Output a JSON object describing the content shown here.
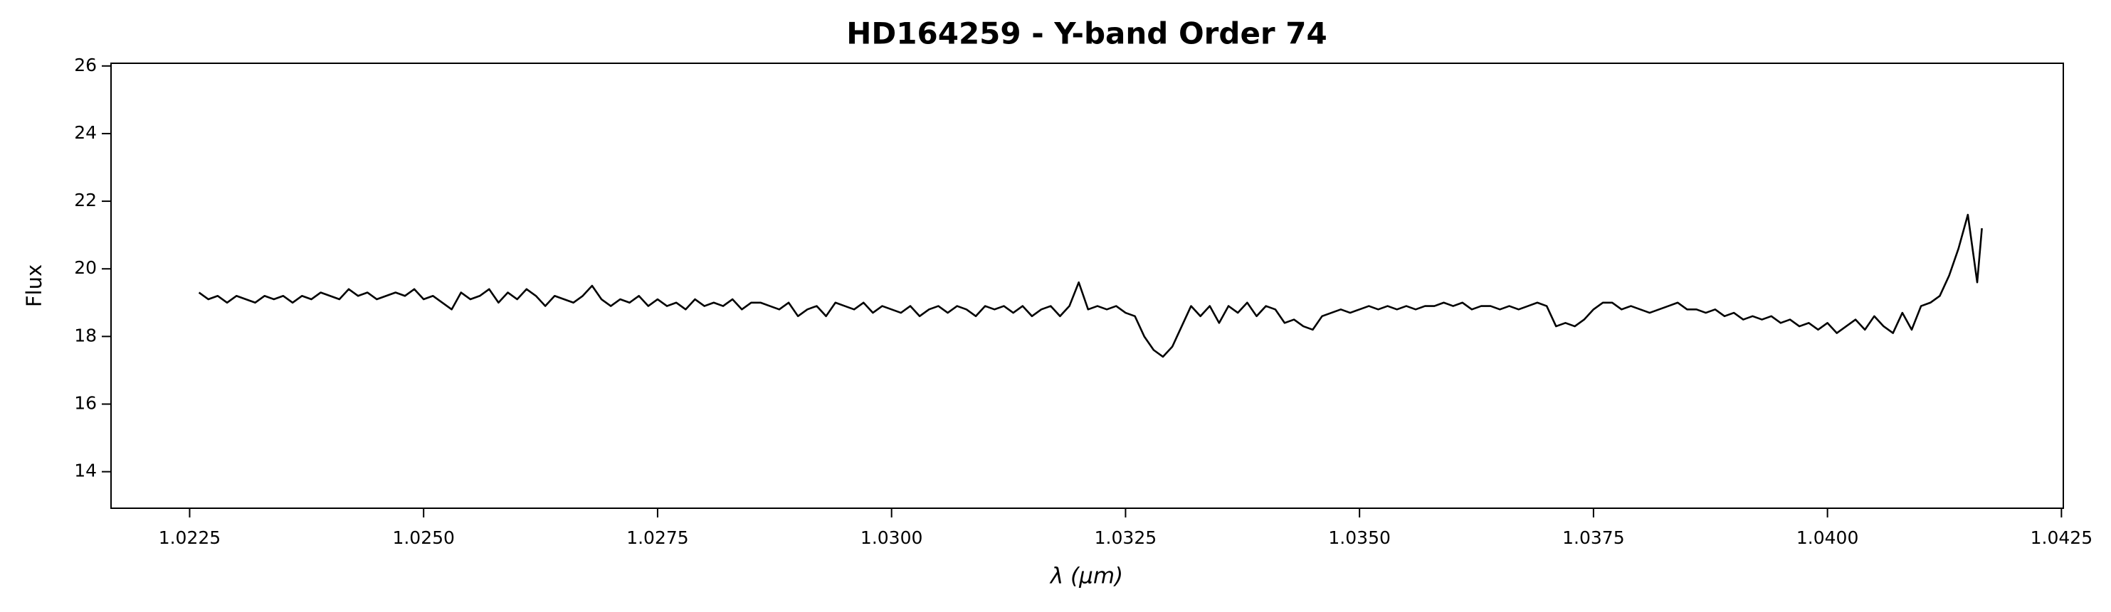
{
  "chart_data": {
    "type": "line",
    "title": "HD164259 - Y-band Order 74",
    "xlabel": "λ (μm)",
    "ylabel": "Flux",
    "color": "#000000",
    "xlim": [
      1.02166,
      1.04252
    ],
    "ylim": [
      12.92,
      26.08
    ],
    "xticks": [
      1.0225,
      {
        "value": 1.025,
        "label": "1.0250"
      },
      1.0275,
      {
        "value": 1.03,
        "label": "1.0300"
      },
      1.0325,
      {
        "value": 1.035,
        "label": "1.0350"
      },
      1.0375,
      {
        "value": 1.04,
        "label": "1.0400"
      },
      1.0425
    ],
    "yticks": [
      14,
      16,
      18,
      20,
      22,
      24,
      26
    ],
    "x": [
      1.0226,
      1.0227,
      1.0228,
      1.0229,
      1.023,
      1.0231,
      1.0232,
      1.0233,
      1.0234,
      1.0235,
      1.0236,
      1.0237,
      1.0238,
      1.0239,
      1.024,
      1.0241,
      1.0242,
      1.0243,
      1.0244,
      1.0245,
      1.0246,
      1.0247,
      1.0248,
      1.0249,
      1.025,
      1.0251,
      1.0252,
      1.0253,
      1.0254,
      1.0255,
      1.0256,
      1.0257,
      1.0258,
      1.0259,
      1.026,
      1.0261,
      1.0262,
      1.0263,
      1.0264,
      1.0265,
      1.0266,
      1.0267,
      1.0268,
      1.0269,
      1.027,
      1.0271,
      1.0272,
      1.0273,
      1.0274,
      1.0275,
      1.0276,
      1.0277,
      1.0278,
      1.0279,
      1.028,
      1.0281,
      1.0282,
      1.0283,
      1.0284,
      1.0285,
      1.0286,
      1.0287,
      1.0288,
      1.0289,
      1.029,
      1.0291,
      1.0292,
      1.0293,
      1.0294,
      1.0295,
      1.0296,
      1.0297,
      1.0298,
      1.0299,
      1.03,
      1.0301,
      1.0302,
      1.0303,
      1.0304,
      1.0305,
      1.0306,
      1.0307,
      1.0308,
      1.0309,
      1.031,
      1.0311,
      1.0312,
      1.0313,
      1.0314,
      1.0315,
      1.0316,
      1.0317,
      1.0318,
      1.0319,
      1.032,
      1.0321,
      1.0322,
      1.0323,
      1.0324,
      1.0325,
      1.0326,
      1.0327,
      1.0328,
      1.0329,
      1.033,
      1.0331,
      1.0332,
      1.0333,
      1.0334,
      1.0335,
      1.0336,
      1.0337,
      1.0338,
      1.0339,
      1.034,
      1.0341,
      1.0342,
      1.0343,
      1.0344,
      1.0345,
      1.0346,
      1.0347,
      1.0348,
      1.0349,
      1.035,
      1.0351,
      1.0352,
      1.0353,
      1.0354,
      1.0355,
      1.0356,
      1.0357,
      1.0358,
      1.0359,
      1.036,
      1.0361,
      1.0362,
      1.0363,
      1.0364,
      1.0365,
      1.0366,
      1.0367,
      1.0368,
      1.0369,
      1.037,
      1.0371,
      1.0372,
      1.0373,
      1.0374,
      1.0375,
      1.0376,
      1.0377,
      1.0378,
      1.0379,
      1.038,
      1.0381,
      1.0382,
      1.0383,
      1.0384,
      1.0385,
      1.0386,
      1.0387,
      1.0388,
      1.0389,
      1.039,
      1.0391,
      1.0392,
      1.0393,
      1.0394,
      1.0395,
      1.0396,
      1.0397,
      1.0398,
      1.0399,
      1.04,
      1.0401,
      1.0402,
      1.0403,
      1.0404,
      1.0405,
      1.0406,
      1.0407,
      1.0408,
      1.0409,
      1.041,
      1.0411,
      1.0412,
      1.0413,
      1.0414,
      1.0415,
      1.0416,
      1.04165
    ],
    "values": [
      19.3,
      19.1,
      19.2,
      19.0,
      19.2,
      19.1,
      19.0,
      19.2,
      19.1,
      19.2,
      19.0,
      19.2,
      19.1,
      19.3,
      19.2,
      19.1,
      19.4,
      19.2,
      19.3,
      19.1,
      19.2,
      19.3,
      19.2,
      19.4,
      19.1,
      19.2,
      19.0,
      18.8,
      19.3,
      19.1,
      19.2,
      19.4,
      19.0,
      19.3,
      19.1,
      19.4,
      19.2,
      18.9,
      19.2,
      19.1,
      19.0,
      19.2,
      19.5,
      19.1,
      18.9,
      19.1,
      19.0,
      19.2,
      18.9,
      19.1,
      18.9,
      19.0,
      18.8,
      19.1,
      18.9,
      19.0,
      18.9,
      19.1,
      18.8,
      19.0,
      19.0,
      18.9,
      18.8,
      19.0,
      18.6,
      18.8,
      18.9,
      18.6,
      19.0,
      18.9,
      18.8,
      19.0,
      18.7,
      18.9,
      18.8,
      18.7,
      18.9,
      18.6,
      18.8,
      18.9,
      18.7,
      18.9,
      18.8,
      18.6,
      18.9,
      18.8,
      18.9,
      18.7,
      18.9,
      18.6,
      18.8,
      18.9,
      18.6,
      18.9,
      19.6,
      18.8,
      18.9,
      18.8,
      18.9,
      18.7,
      18.6,
      18.0,
      17.6,
      17.4,
      17.7,
      18.3,
      18.9,
      18.6,
      18.9,
      18.4,
      18.9,
      18.7,
      19.0,
      18.6,
      18.9,
      18.8,
      18.4,
      18.5,
      18.3,
      18.2,
      18.6,
      18.7,
      18.8,
      18.7,
      18.8,
      18.9,
      18.8,
      18.9,
      18.8,
      18.9,
      18.8,
      18.9,
      18.9,
      19.0,
      18.9,
      19.0,
      18.8,
      18.9,
      18.9,
      18.8,
      18.9,
      18.8,
      18.9,
      19.0,
      18.9,
      18.3,
      18.4,
      18.3,
      18.5,
      18.8,
      19.0,
      19.0,
      18.8,
      18.9,
      18.8,
      18.7,
      18.8,
      18.9,
      19.0,
      18.8,
      18.8,
      18.7,
      18.8,
      18.6,
      18.7,
      18.5,
      18.6,
      18.5,
      18.6,
      18.4,
      18.5,
      18.3,
      18.4,
      18.2,
      18.4,
      18.1,
      18.3,
      18.5,
      18.2,
      18.6,
      18.3,
      18.1,
      18.7,
      18.2,
      18.9,
      19.0,
      19.2,
      19.8,
      20.6,
      21.6,
      19.6,
      21.2
    ]
  }
}
